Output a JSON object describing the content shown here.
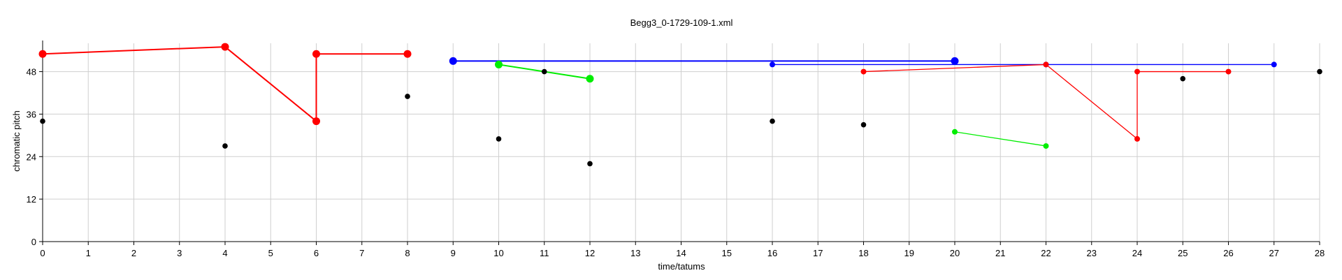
{
  "chart_data": {
    "type": "scatter",
    "title": "Begg3_0-1729-109-1.xml",
    "xlabel": "time/tatums",
    "ylabel": "chromatic pitch",
    "xlim": [
      0,
      28
    ],
    "ylim": [
      0,
      56
    ],
    "xticks": [
      0,
      1,
      2,
      3,
      4,
      5,
      6,
      7,
      8,
      9,
      10,
      11,
      12,
      13,
      14,
      15,
      16,
      17,
      18,
      19,
      20,
      21,
      22,
      23,
      24,
      25,
      26,
      27,
      28
    ],
    "yticks": [
      0,
      12,
      24,
      36,
      48
    ],
    "grid": true,
    "series": [
      {
        "color": "#ff0000",
        "marker": "large",
        "points": [
          [
            0,
            53
          ],
          [
            4,
            55
          ],
          [
            6,
            34
          ],
          [
            6,
            53
          ],
          [
            8,
            53
          ]
        ],
        "segments": [
          [
            [
              0,
              53
            ],
            [
              4,
              55
            ]
          ],
          [
            [
              4,
              55
            ],
            [
              6,
              34
            ]
          ],
          [
            [
              6,
              34
            ],
            [
              6,
              53
            ]
          ],
          [
            [
              6,
              53
            ],
            [
              8,
              53
            ]
          ]
        ]
      },
      {
        "color": "#0000ff",
        "marker": "large",
        "points": [
          [
            9,
            51
          ],
          [
            20,
            51
          ]
        ],
        "segments": [
          [
            [
              9,
              51
            ],
            [
              20,
              51
            ]
          ]
        ]
      },
      {
        "color": "#00ee00",
        "marker": "large",
        "points": [
          [
            10,
            50
          ],
          [
            12,
            46
          ]
        ],
        "segments": [
          [
            [
              10,
              50
            ],
            [
              12,
              46
            ]
          ]
        ]
      },
      {
        "color": "#0000ff",
        "marker": "small",
        "points": [
          [
            16,
            50
          ],
          [
            22,
            50
          ],
          [
            27,
            50
          ]
        ],
        "segments": [
          [
            [
              16,
              50
            ],
            [
              27,
              50
            ]
          ]
        ]
      },
      {
        "color": "#ff0000",
        "marker": "small",
        "points": [
          [
            18,
            48
          ],
          [
            22,
            50
          ],
          [
            24,
            29
          ],
          [
            24,
            48
          ],
          [
            26,
            48
          ]
        ],
        "segments": [
          [
            [
              18,
              48
            ],
            [
              22,
              50
            ]
          ],
          [
            [
              22,
              50
            ],
            [
              24,
              29
            ]
          ],
          [
            [
              24,
              29
            ],
            [
              24,
              48
            ]
          ],
          [
            [
              24,
              48
            ],
            [
              26,
              48
            ]
          ]
        ]
      },
      {
        "color": "#00ee00",
        "marker": "small",
        "points": [
          [
            20,
            31
          ],
          [
            22,
            27
          ]
        ],
        "segments": [
          [
            [
              20,
              31
            ],
            [
              22,
              27
            ]
          ]
        ]
      },
      {
        "color": "#000000",
        "marker": "dot",
        "points": [
          [
            0,
            34
          ],
          [
            4,
            27
          ],
          [
            8,
            41
          ],
          [
            10,
            29
          ],
          [
            11,
            48
          ],
          [
            12,
            22
          ],
          [
            16,
            34
          ],
          [
            18,
            33
          ],
          [
            25,
            46
          ],
          [
            28,
            48
          ]
        ],
        "segments": []
      }
    ]
  }
}
